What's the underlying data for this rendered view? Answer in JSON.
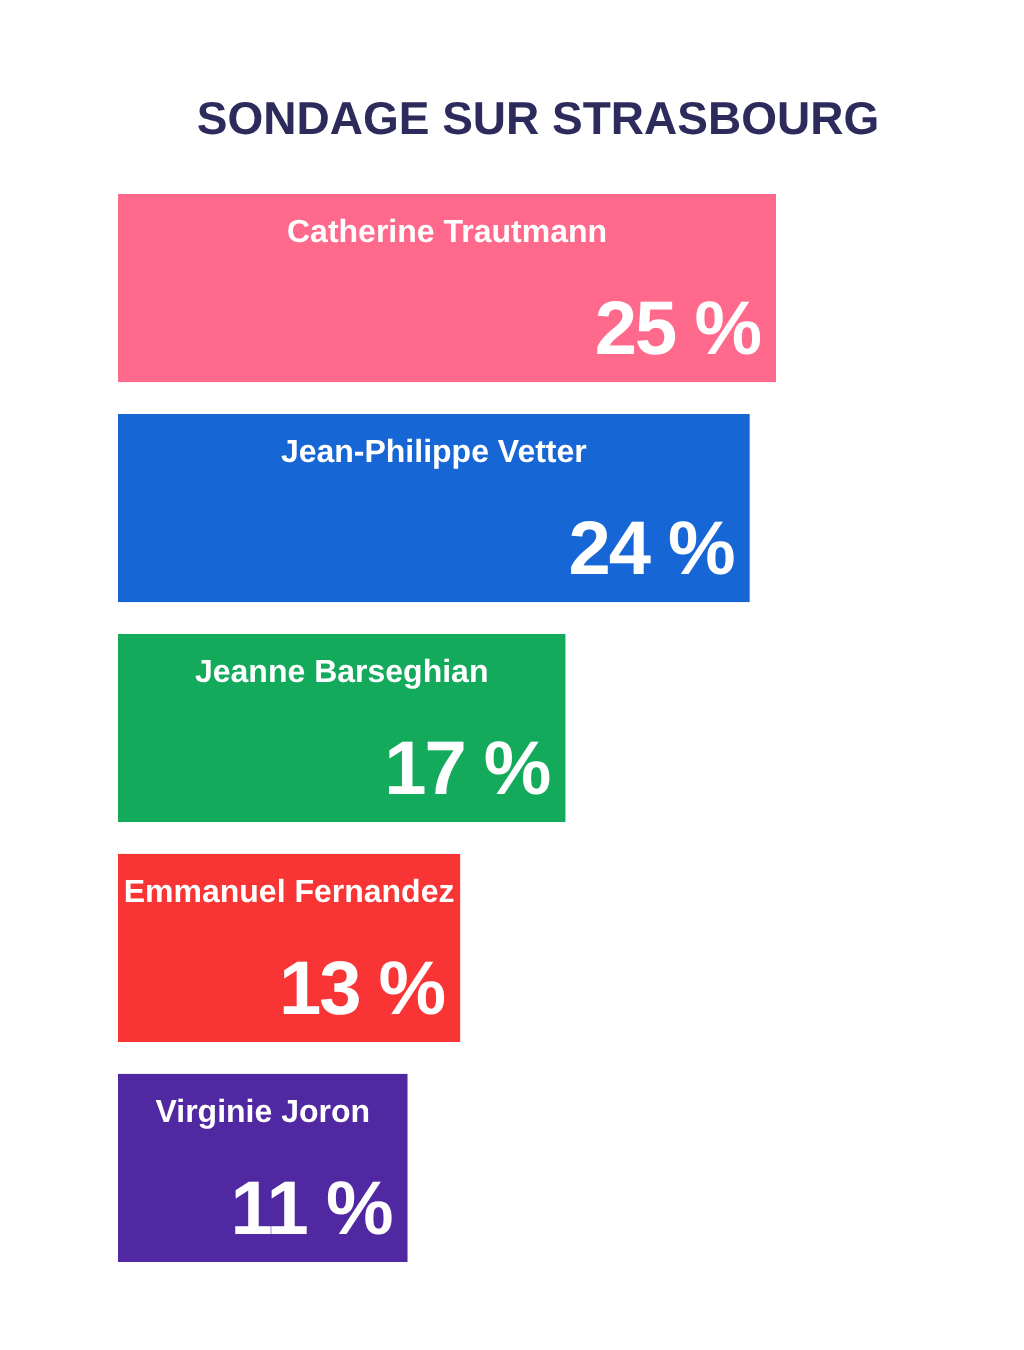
{
  "chart_data": {
    "type": "bar",
    "orientation": "horizontal",
    "title": "SONDAGE SUR STRASBOURG",
    "categories": [
      "Catherine Trautmann",
      "Jean-Philippe Vetter",
      "Jeanne Barseghian",
      "Emmanuel Fernandez",
      "Virginie Joron"
    ],
    "values": [
      25,
      24,
      17,
      13,
      11
    ],
    "colors": [
      "#ff6a8c",
      "#1766d6",
      "#14aa5c",
      "#f83434",
      "#5029a2"
    ],
    "value_labels": [
      "25 %",
      "24 %",
      "17 %",
      "13 %",
      "11 %"
    ]
  }
}
